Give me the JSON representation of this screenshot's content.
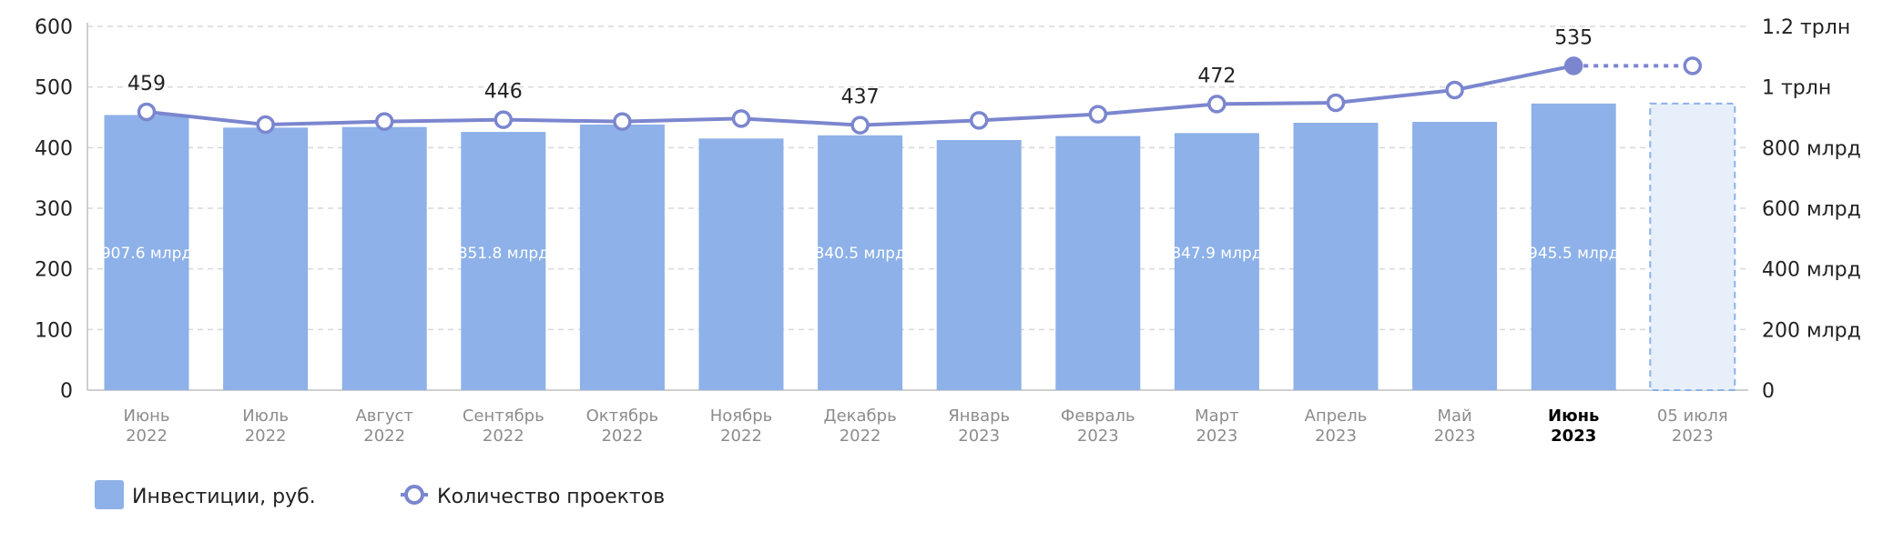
{
  "chart_data": {
    "type": "bar",
    "categories": [
      [
        "Июнь",
        "2022"
      ],
      [
        "Июль",
        "2022"
      ],
      [
        "Август",
        "2022"
      ],
      [
        "Сентябрь",
        "2022"
      ],
      [
        "Октябрь",
        "2022"
      ],
      [
        "Ноябрь",
        "2022"
      ],
      [
        "Декабрь",
        "2022"
      ],
      [
        "Январь",
        "2023"
      ],
      [
        "Февраль",
        "2023"
      ],
      [
        "Март",
        "2023"
      ],
      [
        "Апрель",
        "2023"
      ],
      [
        "Май",
        "2023"
      ],
      [
        "Июнь",
        "2023"
      ],
      [
        "05 июля",
        "2023"
      ]
    ],
    "highlighted_category_index": 12,
    "series": [
      {
        "name": "Инвестиции, руб.",
        "type": "bar",
        "axis": "right",
        "values": [
          907.6,
          866,
          868,
          851.8,
          876,
          830,
          840.5,
          825,
          838,
          847.9,
          882,
          885,
          945.5,
          945.5
        ],
        "value_unit": "млрд",
        "last_value_projected": true,
        "labels": [
          "907.6 млрд",
          "",
          "",
          "851.8 млрд",
          "",
          "",
          "840.5 млрд",
          "",
          "",
          "847.9 млрд",
          "",
          "",
          "945.5 млрд",
          ""
        ],
        "color": "#8db1e8"
      },
      {
        "name": "Количество проектов",
        "type": "line",
        "axis": "left",
        "values": [
          459,
          438,
          443,
          446,
          443,
          448,
          437,
          445,
          455,
          472,
          474,
          495,
          535,
          535
        ],
        "last_value_projected": true,
        "labels": [
          "459",
          "",
          "",
          "446",
          "",
          "",
          "437",
          "",
          "",
          "472",
          "",
          "",
          "535",
          ""
        ],
        "color": "#7b86cf"
      }
    ],
    "y_left": {
      "ticks": [
        "0",
        "100",
        "200",
        "300",
        "400",
        "500",
        "600"
      ],
      "range": [
        0,
        600
      ]
    },
    "y_right": {
      "ticks": [
        "0",
        "200 млрд",
        "400 млрд",
        "600 млрд",
        "800 млрд",
        "1 трлн",
        "1.2 трлн"
      ],
      "range_mlrd": [
        0,
        1200
      ]
    },
    "grid": "horizontal-dashed",
    "legend_position": "bottom-left"
  },
  "legend": {
    "bars": "Инвестиции, руб.",
    "line": "Количество проектов"
  },
  "colors": {
    "bar": "#8db1e8",
    "bar_projected_fill": "#e6effa",
    "line": "#7b86cf",
    "grid": "#d9d9d9"
  }
}
